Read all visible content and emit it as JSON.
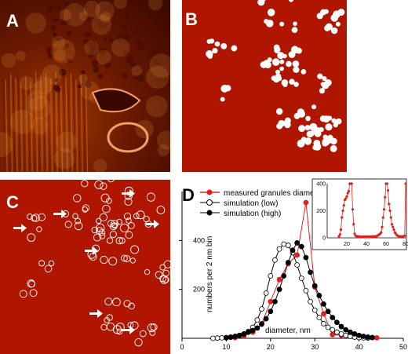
{
  "panels": {
    "a": {
      "label": "A"
    },
    "b": {
      "label": "B"
    },
    "c": {
      "label": "C"
    },
    "d": {
      "label": "D"
    }
  },
  "colors": {
    "micrograph_dark": "#3a0800",
    "micrograph_mid": "#a33a00",
    "map_background": "#b01500",
    "granule": "#ffffff",
    "measured": "#e02020",
    "simulation_low": "#ffffff",
    "simulation_high": "#000000"
  },
  "chart_data": [
    {
      "type": "line",
      "xlabel": "diameter, nm",
      "ylabel": "numbers per 2 nm bin",
      "xlim": [
        0,
        50
      ],
      "ylim": [
        0,
        600
      ],
      "xticks": [
        0,
        10,
        20,
        30,
        40,
        50
      ],
      "yticks": [
        200,
        400
      ],
      "grid": false,
      "legend": "top-left",
      "series": [
        {
          "name": "measured granules diameter",
          "color": "#e02020",
          "marker": "filled-circle",
          "x": [
            12,
            14,
            16,
            18,
            20,
            22,
            24,
            26,
            28,
            30,
            32,
            34,
            36,
            38,
            40,
            42,
            44
          ],
          "y": [
            3,
            10,
            25,
            60,
            150,
            240,
            305,
            340,
            555,
            210,
            100,
            15,
            12,
            8,
            5,
            3,
            2
          ]
        },
        {
          "name": "simulation (low)",
          "color": "#000000",
          "marker": "open-circle",
          "x": [
            7,
            8,
            9,
            10,
            11,
            12,
            13,
            14,
            15,
            16,
            17,
            18,
            19,
            20,
            21,
            22,
            23,
            24,
            25,
            26,
            27,
            28,
            29,
            30,
            31,
            32,
            33,
            34,
            35,
            36,
            37,
            38,
            39,
            40,
            41,
            42
          ],
          "y": [
            0,
            1,
            2,
            3,
            5,
            8,
            12,
            18,
            28,
            45,
            75,
            120,
            185,
            255,
            320,
            365,
            385,
            380,
            350,
            300,
            245,
            195,
            150,
            115,
            85,
            60,
            45,
            35,
            25,
            18,
            12,
            8,
            5,
            3,
            2,
            1
          ]
        },
        {
          "name": "simulation (high)",
          "color": "#000000",
          "marker": "filled-circle",
          "x": [
            10,
            11,
            12,
            13,
            14,
            15,
            16,
            17,
            18,
            19,
            20,
            21,
            22,
            23,
            24,
            25,
            26,
            27,
            28,
            29,
            30,
            31,
            32,
            33,
            34,
            35,
            36,
            37,
            38,
            39,
            40,
            41,
            42,
            43
          ],
          "y": [
            2,
            4,
            8,
            12,
            18,
            25,
            32,
            42,
            58,
            80,
            110,
            150,
            200,
            255,
            310,
            360,
            390,
            375,
            330,
            270,
            215,
            175,
            140,
            110,
            85,
            65,
            48,
            35,
            25,
            18,
            12,
            8,
            5,
            3
          ]
        }
      ]
    },
    {
      "type": "line",
      "xlim": [
        0,
        80
      ],
      "ylim": [
        0,
        400
      ],
      "xticks": [
        20,
        40,
        60,
        80
      ],
      "yticks": [
        0,
        200,
        400
      ],
      "grid": false,
      "series": [
        {
          "color": "#e02020",
          "marker": "filled-circle",
          "x": [
            12,
            13,
            14,
            15,
            16,
            17,
            18,
            19,
            20,
            21,
            22,
            23,
            24,
            25,
            26,
            27,
            28,
            29,
            30,
            31,
            32,
            33,
            34,
            35,
            36,
            37,
            38,
            39,
            40,
            41,
            42,
            43,
            44,
            45,
            46,
            47,
            48,
            49,
            50,
            51,
            52,
            53,
            54,
            55,
            56,
            57,
            58,
            59,
            60,
            61,
            62,
            63,
            64,
            65,
            66,
            67,
            68,
            69,
            70,
            71,
            72,
            73,
            74,
            75,
            76,
            77,
            78,
            79,
            80
          ],
          "y": [
            10,
            25,
            60,
            150,
            200,
            240,
            280,
            290,
            305,
            330,
            345,
            440,
            470,
            400,
            210,
            100,
            30,
            15,
            12,
            10,
            10,
            8,
            8,
            8,
            8,
            8,
            8,
            8,
            8,
            8,
            8,
            8,
            8,
            8,
            10,
            10,
            10,
            10,
            10,
            15,
            20,
            25,
            30,
            40,
            80,
            150,
            210,
            300,
            430,
            440,
            350,
            250,
            200,
            150,
            100,
            80,
            60,
            40,
            30,
            20,
            15,
            12,
            10,
            10,
            10,
            10,
            12,
            15,
            440
          ]
        }
      ]
    }
  ]
}
